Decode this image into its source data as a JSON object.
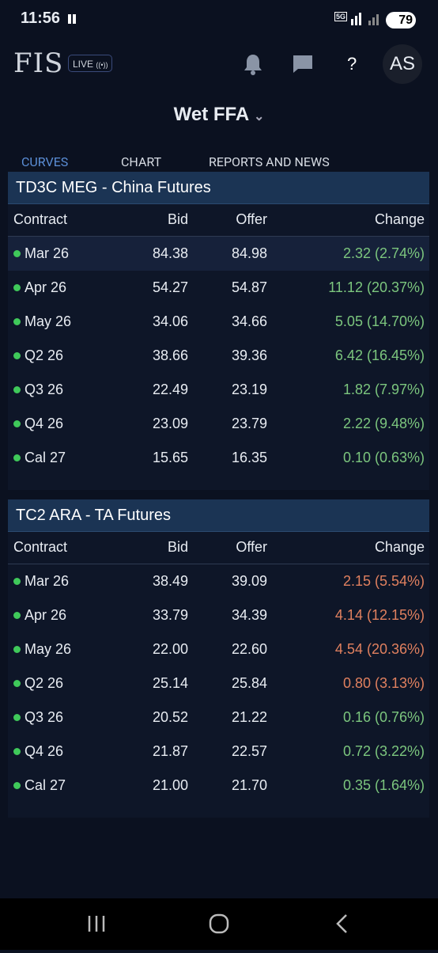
{
  "status_bar": {
    "time": "11:56",
    "network": "5G",
    "battery": "79"
  },
  "header": {
    "logo": "FIS",
    "live": "LIVE",
    "help": "?",
    "avatar": "AS"
  },
  "title": "Wet FFA",
  "tabs": [
    "CURVES",
    "CHART",
    "REPORTS AND NEWS"
  ],
  "tables": [
    {
      "title": "TD3C MEG - China Futures",
      "columns": [
        "Contract",
        "Bid",
        "Offer",
        "Change"
      ],
      "rows": [
        {
          "contract": "Mar 26",
          "bid": "84.38",
          "offer": "84.98",
          "change": "2.32 (2.74%)",
          "change_color": "#7cc67e"
        },
        {
          "contract": "Apr 26",
          "bid": "54.27",
          "offer": "54.87",
          "change": "11.12 (20.37%)",
          "change_color": "#7cc67e"
        },
        {
          "contract": "May 26",
          "bid": "34.06",
          "offer": "34.66",
          "change": "5.05 (14.70%)",
          "change_color": "#7cc67e"
        },
        {
          "contract": "Q2 26",
          "bid": "38.66",
          "offer": "39.36",
          "change": "6.42 (16.45%)",
          "change_color": "#7cc67e"
        },
        {
          "contract": "Q3 26",
          "bid": "22.49",
          "offer": "23.19",
          "change": "1.82 (7.97%)",
          "change_color": "#7cc67e"
        },
        {
          "contract": "Q4 26",
          "bid": "23.09",
          "offer": "23.79",
          "change": "2.22 (9.48%)",
          "change_color": "#7cc67e"
        },
        {
          "contract": "Cal 27",
          "bid": "15.65",
          "offer": "16.35",
          "change": "0.10 (0.63%)",
          "change_color": "#7cc67e"
        }
      ]
    },
    {
      "title": "TC2 ARA - TA Futures",
      "columns": [
        "Contract",
        "Bid",
        "Offer",
        "Change"
      ],
      "rows": [
        {
          "contract": "Mar 26",
          "bid": "38.49",
          "offer": "39.09",
          "change": "2.15 (5.54%)",
          "change_color": "#e0805f"
        },
        {
          "contract": "Apr 26",
          "bid": "33.79",
          "offer": "34.39",
          "change": "4.14 (12.15%)",
          "change_color": "#e0805f"
        },
        {
          "contract": "May 26",
          "bid": "22.00",
          "offer": "22.60",
          "change": "4.54 (20.36%)",
          "change_color": "#e0805f"
        },
        {
          "contract": "Q2 26",
          "bid": "25.14",
          "offer": "25.84",
          "change": "0.80 (3.13%)",
          "change_color": "#e0805f"
        },
        {
          "contract": "Q3 26",
          "bid": "20.52",
          "offer": "21.22",
          "change": "0.16 (0.76%)",
          "change_color": "#7cc67e"
        },
        {
          "contract": "Q4 26",
          "bid": "21.87",
          "offer": "22.57",
          "change": "0.72 (3.22%)",
          "change_color": "#7cc67e"
        },
        {
          "contract": "Cal 27",
          "bid": "21.00",
          "offer": "21.70",
          "change": "0.35 (1.64%)",
          "change_color": "#7cc67e"
        }
      ]
    }
  ]
}
